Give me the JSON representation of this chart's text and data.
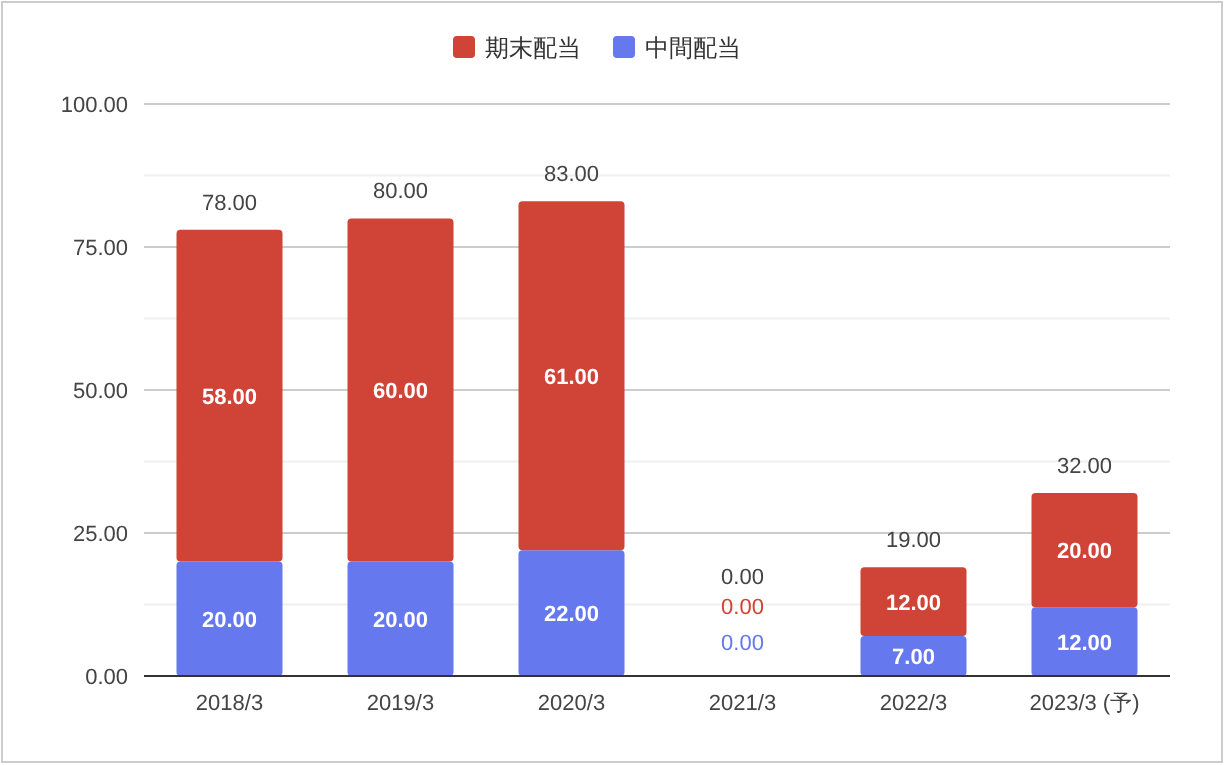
{
  "chart_data": {
    "type": "bar",
    "stacked": true,
    "legend": "top",
    "grid": "y",
    "categories": [
      "2018/3",
      "2019/3",
      "2020/3",
      "2021/3",
      "2022/3",
      "2023/3 (予)"
    ],
    "ylim": [
      0,
      100
    ],
    "yticks": [
      {
        "value": 0,
        "label": "0.00"
      },
      {
        "value": 12.5,
        "label": null
      },
      {
        "value": 25,
        "label": "25.00"
      },
      {
        "value": 37.5,
        "label": null
      },
      {
        "value": 50,
        "label": "50.00"
      },
      {
        "value": 62.5,
        "label": null
      },
      {
        "value": 75,
        "label": "75.00"
      },
      {
        "value": 87.5,
        "label": null
      },
      {
        "value": 100,
        "label": "100.00"
      }
    ],
    "series": [
      {
        "name": "中間配当",
        "color": "#6678ee",
        "values": [
          20,
          20,
          22,
          0,
          7,
          12
        ],
        "value_labels": [
          "20.00",
          "20.00",
          "22.00",
          "0.00",
          "7.00",
          "12.00"
        ]
      },
      {
        "name": "期末配当",
        "color": "#cf4437",
        "values": [
          58,
          60,
          61,
          0,
          12,
          20
        ],
        "value_labels": [
          "58.00",
          "60.00",
          "61.00",
          "0.00",
          "12.00",
          "20.00"
        ]
      }
    ],
    "totals": [
      "78.00",
      "80.00",
      "83.00",
      "0.00",
      "19.00",
      "32.00"
    ]
  }
}
